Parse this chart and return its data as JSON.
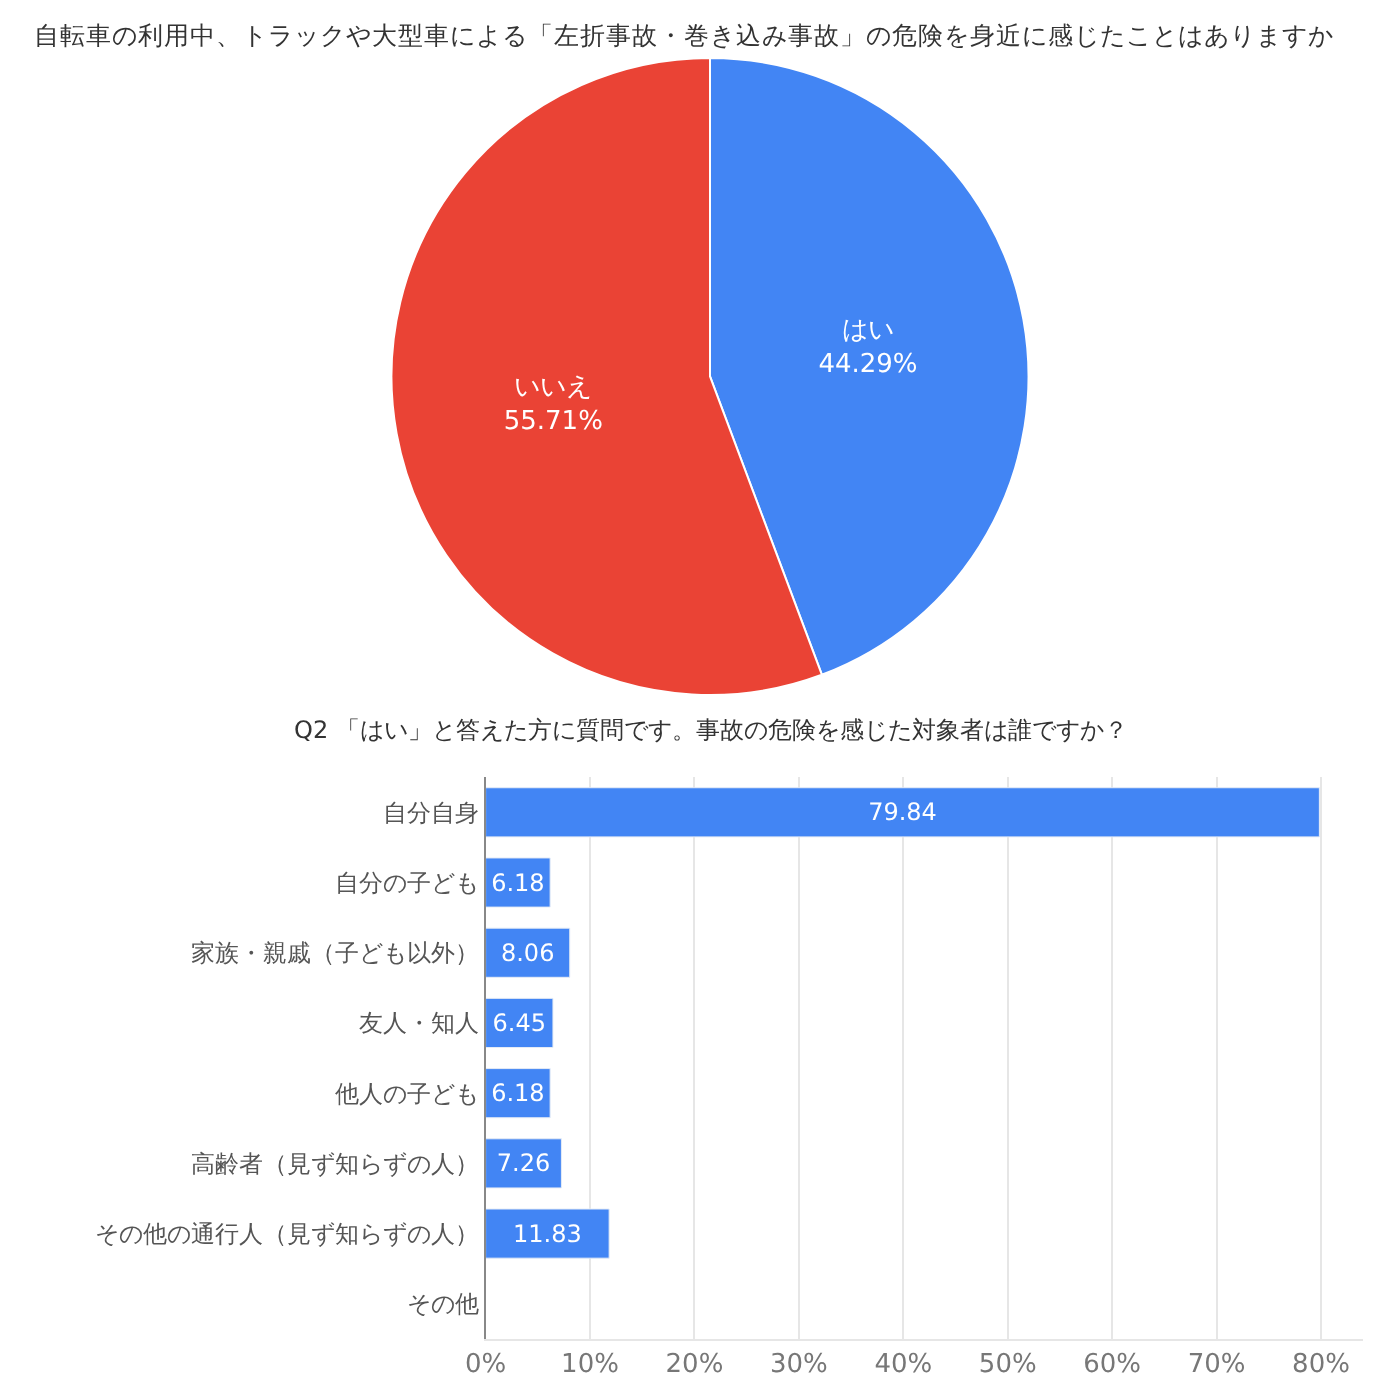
{
  "chart_data": [
    {
      "type": "pie",
      "title": "自転車の利用中、トラックや大型車による「左折事故・巻き込み事故」の危険を身近に感じたことはありますか",
      "categories": [
        "はい",
        "いいえ"
      ],
      "values": [
        44.29,
        55.71
      ],
      "value_labels": [
        "44.29%",
        "55.71%"
      ],
      "colors": [
        "#4285f4",
        "#ea4335"
      ]
    },
    {
      "type": "bar",
      "orientation": "horizontal",
      "title": "Q2 「はい」と答えた方に質問です。事故の危険を感じた対象者は誰ですか？",
      "categories": [
        "自分自身",
        "自分の子ども",
        "家族・親戚（子ども以外）",
        "友人・知人",
        "他人の子ども",
        "高齢者（見ず知らずの人）",
        "その他の通行人（見ず知らずの人）",
        "その他"
      ],
      "values": [
        79.84,
        6.18,
        8.06,
        6.45,
        6.18,
        7.26,
        11.83,
        null
      ],
      "value_labels": [
        "79.84",
        "6.18",
        "8.06",
        "6.45",
        "6.18",
        "7.26",
        "11.83",
        null
      ],
      "color": "#4285f4",
      "xlim": [
        0,
        84
      ],
      "xticks": [
        {
          "value": 0,
          "label": "0%"
        },
        {
          "value": 10,
          "label": "10%"
        },
        {
          "value": 20,
          "label": "20%"
        },
        {
          "value": 30,
          "label": "30%"
        },
        {
          "value": 40,
          "label": "40%"
        },
        {
          "value": 50,
          "label": "50%"
        },
        {
          "value": 60,
          "label": "60%"
        },
        {
          "value": 70,
          "label": "70%"
        },
        {
          "value": 80,
          "label": "80%"
        }
      ],
      "grid": "x"
    }
  ]
}
